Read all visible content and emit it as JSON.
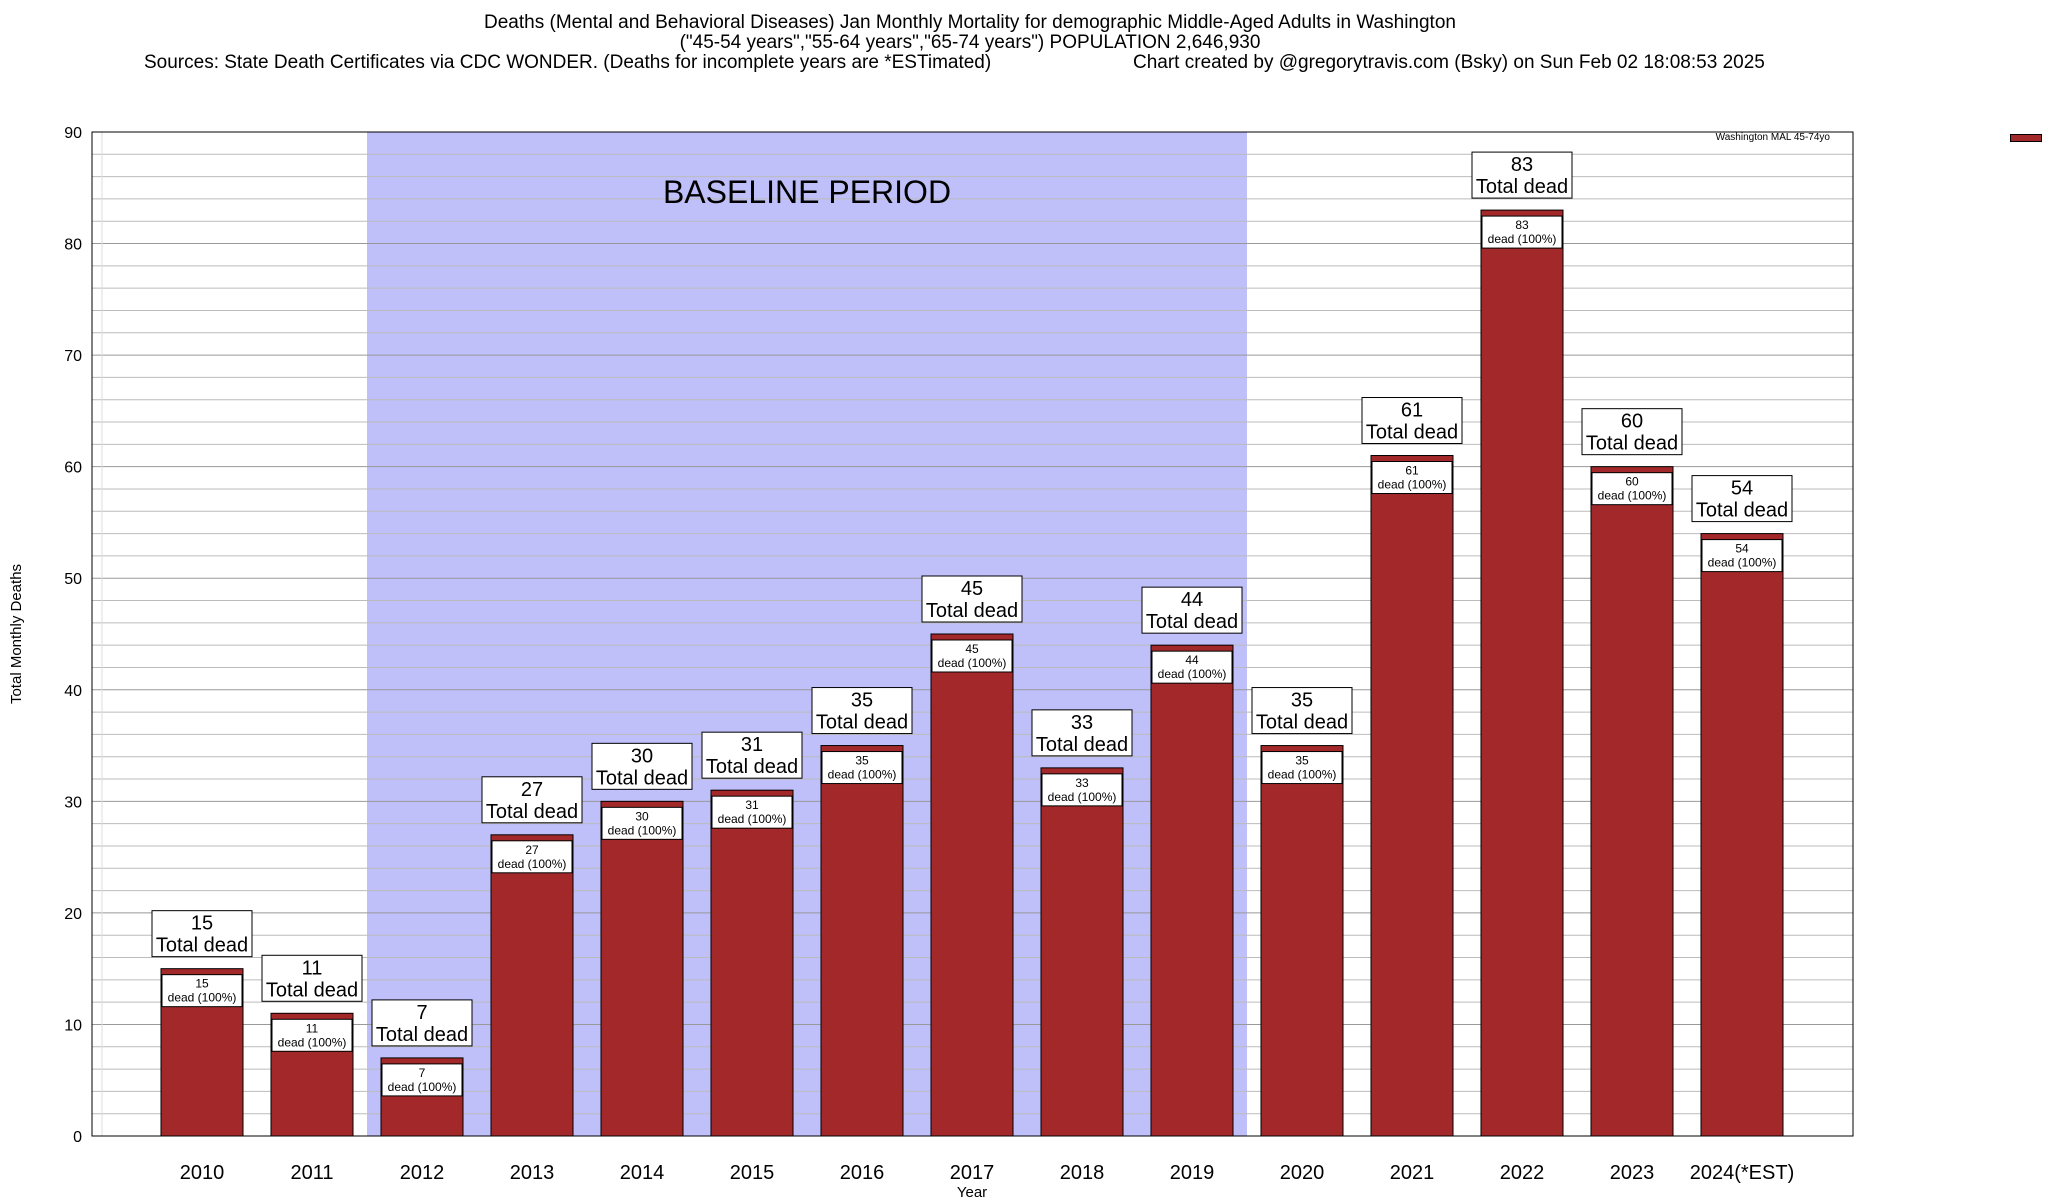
{
  "title": {
    "line1": "Deaths (Mental and Behavioral Diseases) Jan Monthly Mortality for demographic Middle-Aged Adults in Washington",
    "line2": "(\"45-54 years\",\"55-64 years\",\"65-74 years\") POPULATION 2,646,930",
    "line3_left": "Sources: State Death Certificates via CDC WONDER. (Deaths for incomplete years are *ESTimated)",
    "line3_right": "Chart created by @gregorytravis.com (Bsky) on Sun Feb 02 18:08:53 2025"
  },
  "legend": {
    "label": "Washington MAL 45-74yo",
    "color": "#a3282a"
  },
  "colors": {
    "bar": "#a3282a",
    "baseline": "#bfbffa",
    "grid": "#bbbbbb"
  },
  "chart_data": {
    "type": "bar",
    "xlabel": "Year",
    "ylabel": "Total Monthly Deaths",
    "ylim": [
      0,
      90
    ],
    "yticks": [
      0,
      10,
      20,
      30,
      40,
      50,
      60,
      70,
      80,
      90
    ],
    "grid": true,
    "legend_position": "top-right outside",
    "categories": [
      "2010",
      "2011",
      "2012",
      "2013",
      "2014",
      "2015",
      "2016",
      "2017",
      "2018",
      "2019",
      "2020",
      "2021",
      "2022",
      "2023",
      "2024(*EST)"
    ],
    "series": [
      {
        "name": "Washington MAL 45-74yo",
        "values": [
          15,
          11,
          7,
          27,
          30,
          31,
          35,
          45,
          33,
          44,
          35,
          61,
          83,
          60,
          54
        ]
      }
    ],
    "top_label_text": "Total dead",
    "inner_label_text": "dead (100%)",
    "baseline_period": {
      "label": "BASELINE PERIOD",
      "start": "2012",
      "end": "2019"
    }
  }
}
